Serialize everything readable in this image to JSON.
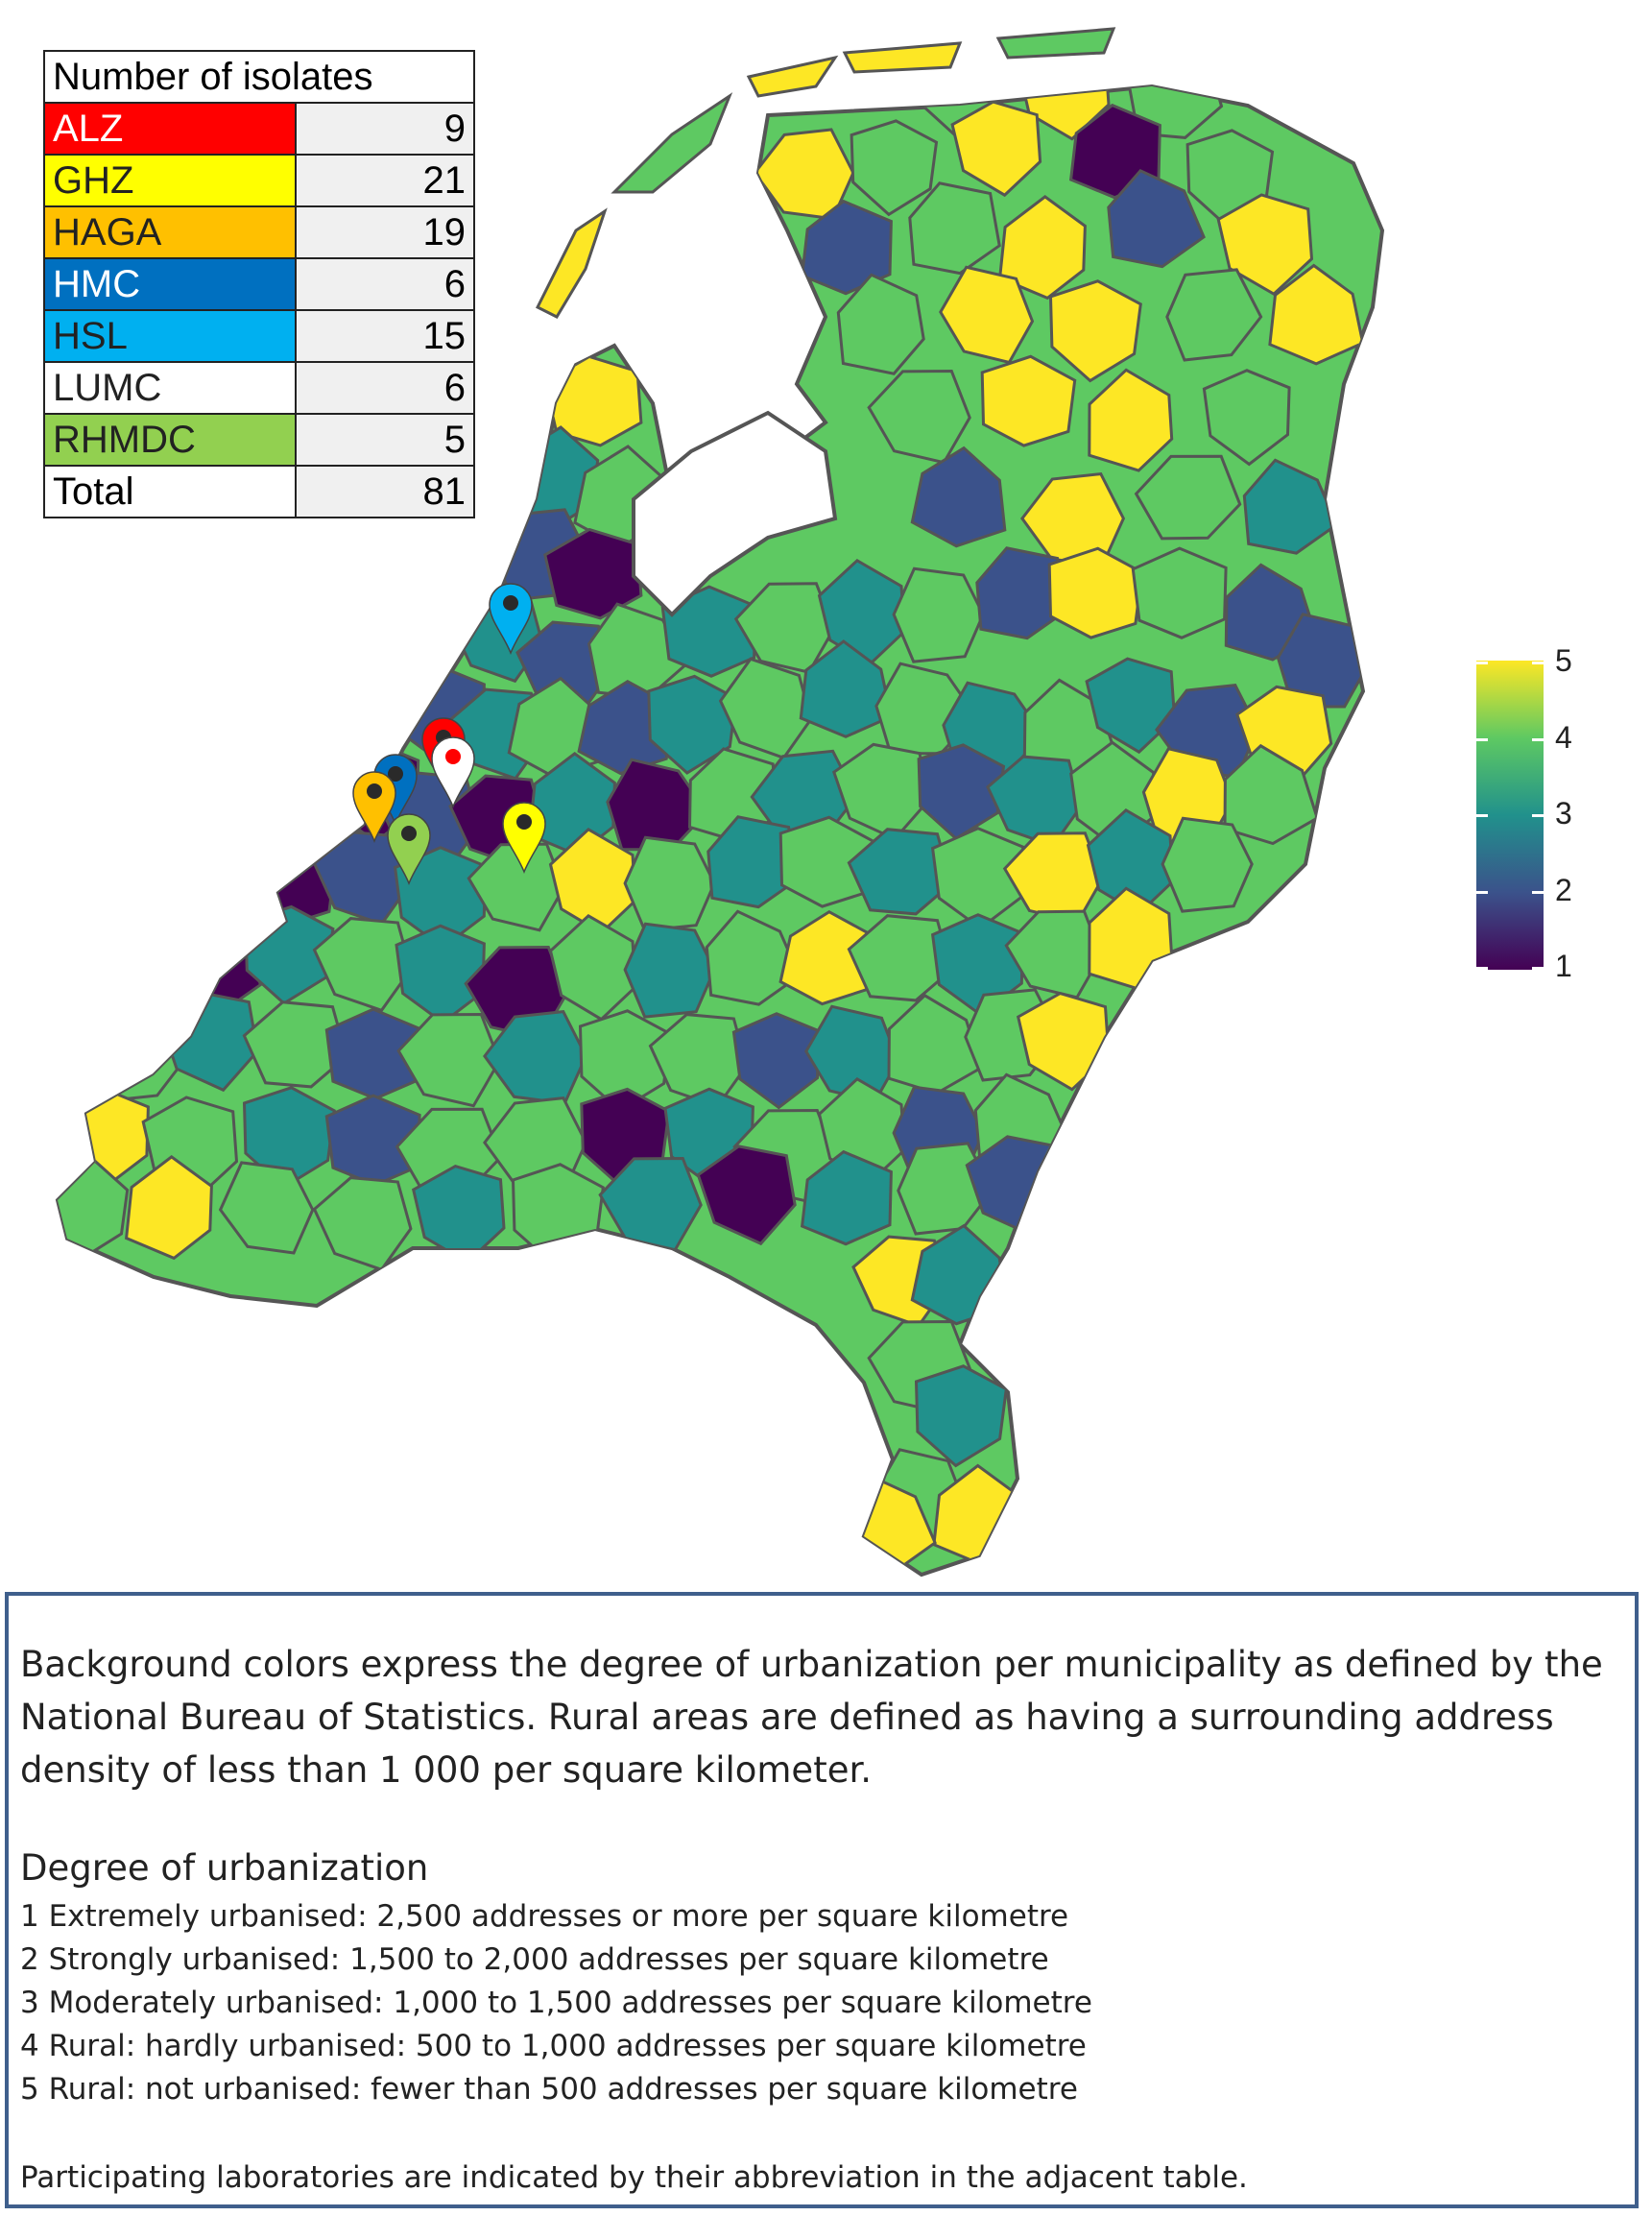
{
  "table": {
    "header": "Number of isolates",
    "rows": [
      {
        "label": "ALZ",
        "count": "9",
        "color": "#ff0000",
        "text_color": "#ffffff"
      },
      {
        "label": "GHZ",
        "count": "21",
        "color": "#ffff00",
        "text_color": "#222222"
      },
      {
        "label": "HAGA",
        "count": "19",
        "color": "#ffc000",
        "text_color": "#222222"
      },
      {
        "label": "HMC",
        "count": "6",
        "color": "#0070c0",
        "text_color": "#ffffff"
      },
      {
        "label": "HSL",
        "count": "15",
        "color": "#00b0f0",
        "text_color": "#222222"
      },
      {
        "label": "LUMC",
        "count": "6",
        "color": "#ffffff",
        "text_color": "#222222"
      },
      {
        "label": "RHMDC",
        "count": "5",
        "color": "#92d050",
        "text_color": "#222222"
      }
    ],
    "total_label": "Total",
    "total_count": "81"
  },
  "colorbar": {
    "labels": [
      "5",
      "4",
      "3",
      "2",
      "1"
    ],
    "colormap": "viridis",
    "range": [
      1,
      5
    ],
    "colors": {
      "1": "#440154",
      "2": "#3b528b",
      "3": "#21918c",
      "4": "#5ec962",
      "5": "#fde725"
    }
  },
  "map": {
    "outline_color": "#555555",
    "markers": [
      {
        "lab": "HSL",
        "color": "#00b0f0"
      },
      {
        "lab": "ALZ",
        "color": "#ff0000"
      },
      {
        "lab": "LUMC",
        "color": "#ffffff"
      },
      {
        "lab": "HMC",
        "color": "#0070c0"
      },
      {
        "lab": "HAGA",
        "color": "#ffc000"
      },
      {
        "lab": "GHZ",
        "color": "#ffff00"
      },
      {
        "lab": "RHMDC",
        "color": "#92d050"
      }
    ]
  },
  "caption": {
    "intro": "Background colors express the degree of urbanization per municipality as defined by the National Bureau of Statistics. Rural areas are defined as having a surrounding address density of less than 1 000 per square kilometer.",
    "heading": "Degree of urbanization",
    "items": [
      "1 Extremely urbanised: 2,500 addresses or more per square kilometre",
      "2 Strongly urbanised: 1,500 to 2,000 addresses per square kilometre",
      "3 Moderately urbanised: 1,000 to 1,500 addresses per square kilometre",
      "4 Rural: hardly urbanised: 500 to 1,000 addresses per square kilometre",
      "5 Rural: not urbanised: fewer than 500 addresses per square kilometre"
    ],
    "footer": "Participating laboratories are indicated by their abbreviation in the adjacent table."
  }
}
